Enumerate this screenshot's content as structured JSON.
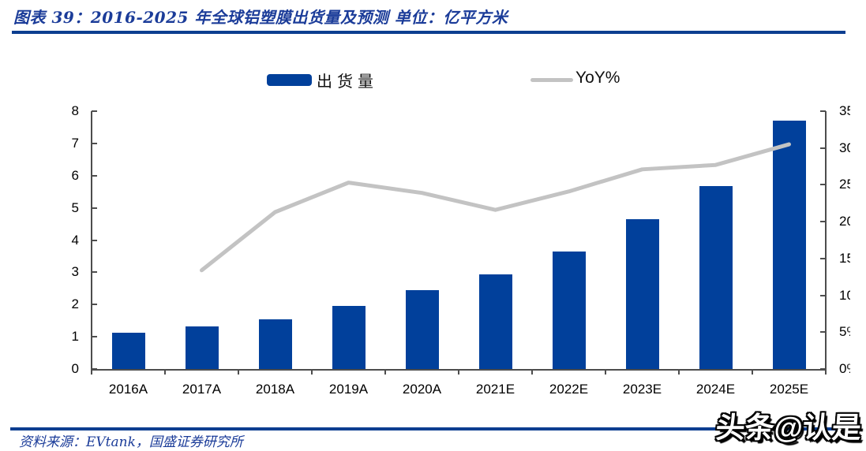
{
  "header": {
    "title": "图表 39：2016-2025 年全球铝塑膜出货量及预测  单位：亿平方米"
  },
  "footer": {
    "source": "资料来源：EVtank，国盛证券研究所",
    "watermark": "头条@认是"
  },
  "colors": {
    "accent_rule_blue": "#0C3E90",
    "title_text_blue": "#1B3C99",
    "bar_blue": "#01409B",
    "line_gray": "#C3C3C3",
    "axis_gray": "#4d4d4d",
    "label_black": "#000000"
  },
  "chart_data": {
    "type": "bar",
    "subtype": "bar-line-combo",
    "title": "2016-2025 年全球铝塑膜出货量及预测",
    "unit": "亿平方米",
    "categories": [
      "2016A",
      "2017A",
      "2018A",
      "2019A",
      "2020A",
      "2021E",
      "2022E",
      "2023E",
      "2024E",
      "2025E"
    ],
    "series": [
      {
        "name": "出货量",
        "type": "bar",
        "axis": "left",
        "color": "#01409B",
        "values": [
          1.12,
          1.31,
          1.53,
          1.95,
          2.44,
          2.93,
          3.64,
          4.65,
          5.67,
          7.7
        ]
      },
      {
        "name": "YoY%",
        "type": "line",
        "axis": "right",
        "color": "#C3C3C3",
        "values": [
          null,
          13.4,
          21.3,
          25.3,
          23.9,
          21.6,
          24.1,
          27.1,
          27.7,
          30.5
        ]
      }
    ],
    "left_axis": {
      "min": 0,
      "max": 8,
      "step": 1
    },
    "right_axis": {
      "min": 0,
      "max": 35,
      "step": 5,
      "suffix": "%"
    },
    "legend": [
      {
        "label": "出货量",
        "swatch": "bar"
      },
      {
        "label": "YoY%",
        "swatch": "line"
      }
    ],
    "grid": false,
    "legend_position": "top"
  }
}
